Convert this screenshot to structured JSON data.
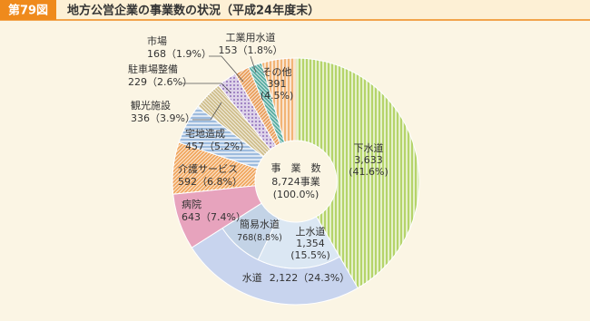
{
  "chart_data": {
    "type": "donut",
    "figure_label": "第79図",
    "title": "地方公営企業の事業数の状況（平成24年度末）",
    "center": {
      "title": "事　業　数",
      "total": 8724,
      "total_label": "8,724事業",
      "percent_label": "(100.0%)"
    },
    "series": [
      {
        "name": "下水道",
        "value": 3633,
        "value_label": "3,633",
        "percent_label": "(41.6%)",
        "color": "#a9cd52",
        "pattern": "vstripe"
      },
      {
        "name": "水道",
        "value": 2122,
        "value_label": "2,122",
        "percent_label": "（24.3%）",
        "color": "#c8d4ee",
        "pattern": "solid",
        "sub": [
          {
            "name": "上水道",
            "value": 1354,
            "value_label": "1,354",
            "percent_label": "(15.5%)",
            "color": "#dbe7f3",
            "pattern": "solid"
          },
          {
            "name": "簡易水道",
            "value": 768,
            "value_label": "768",
            "percent_label": "(8.8%)",
            "color": "#c3d3e6",
            "pattern": "solid"
          }
        ]
      },
      {
        "name": "病院",
        "value": 643,
        "value_label": "643",
        "percent_label": "（7.4%）",
        "color": "#e7a3bd",
        "pattern": "solid"
      },
      {
        "name": "介護サービス",
        "value": 592,
        "value_label": "592",
        "percent_label": "（6.8%）",
        "color": "#f0a256",
        "pattern": "dstripe"
      },
      {
        "name": "宅地造成",
        "value": 457,
        "value_label": "457",
        "percent_label": "（5.2%）",
        "color": "#8eb2d8",
        "pattern": "hstripe"
      },
      {
        "name": "観光施設",
        "value": 336,
        "value_label": "336",
        "percent_label": "（3.9%）",
        "color": "#cdbb86",
        "pattern": "dstripe2"
      },
      {
        "name": "駐車場整備",
        "value": 229,
        "value_label": "229",
        "percent_label": "（2.6%）",
        "color": "#8e6cb8",
        "pattern": "dots"
      },
      {
        "name": "市場",
        "value": 168,
        "value_label": "168",
        "percent_label": "（1.9%）",
        "color": "#e89a54",
        "pattern": "dstripe"
      },
      {
        "name": "工業用水道",
        "value": 153,
        "value_label": "153",
        "percent_label": "（1.8%）",
        "color": "#4fa89c",
        "pattern": "dstripe2"
      },
      {
        "name": "その他",
        "value": 391,
        "value_label": "391",
        "percent_label": "(4.5%)",
        "color": "#f0a860",
        "pattern": "vstripe"
      }
    ]
  }
}
